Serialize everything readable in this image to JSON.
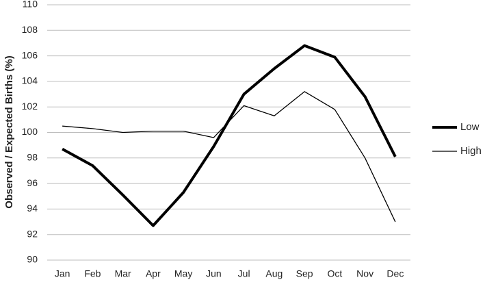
{
  "chart_data": {
    "type": "line",
    "y_label": "Observed / Expected Births (%)",
    "categories": [
      "Jan",
      "Feb",
      "Mar",
      "Apr",
      "May",
      "Jun",
      "Jul",
      "Aug",
      "Sep",
      "Oct",
      "Nov",
      "Dec"
    ],
    "series": [
      {
        "name": "Low",
        "color": "#000000",
        "values": [
          98.7,
          97.4,
          95.1,
          92.7,
          95.3,
          98.9,
          103.0,
          105.0,
          106.8,
          105.9,
          102.8,
          98.1
        ]
      },
      {
        "name": "High",
        "color": "#000000",
        "values": [
          100.5,
          100.3,
          100.0,
          100.1,
          100.1,
          99.6,
          102.1,
          101.3,
          103.2,
          101.8,
          98.0,
          93.0
        ]
      }
    ],
    "ylim": [
      90,
      110
    ],
    "yticks": [
      90,
      92,
      94,
      96,
      98,
      100,
      102,
      104,
      106,
      108,
      110
    ],
    "grid": true,
    "legend": "right"
  }
}
